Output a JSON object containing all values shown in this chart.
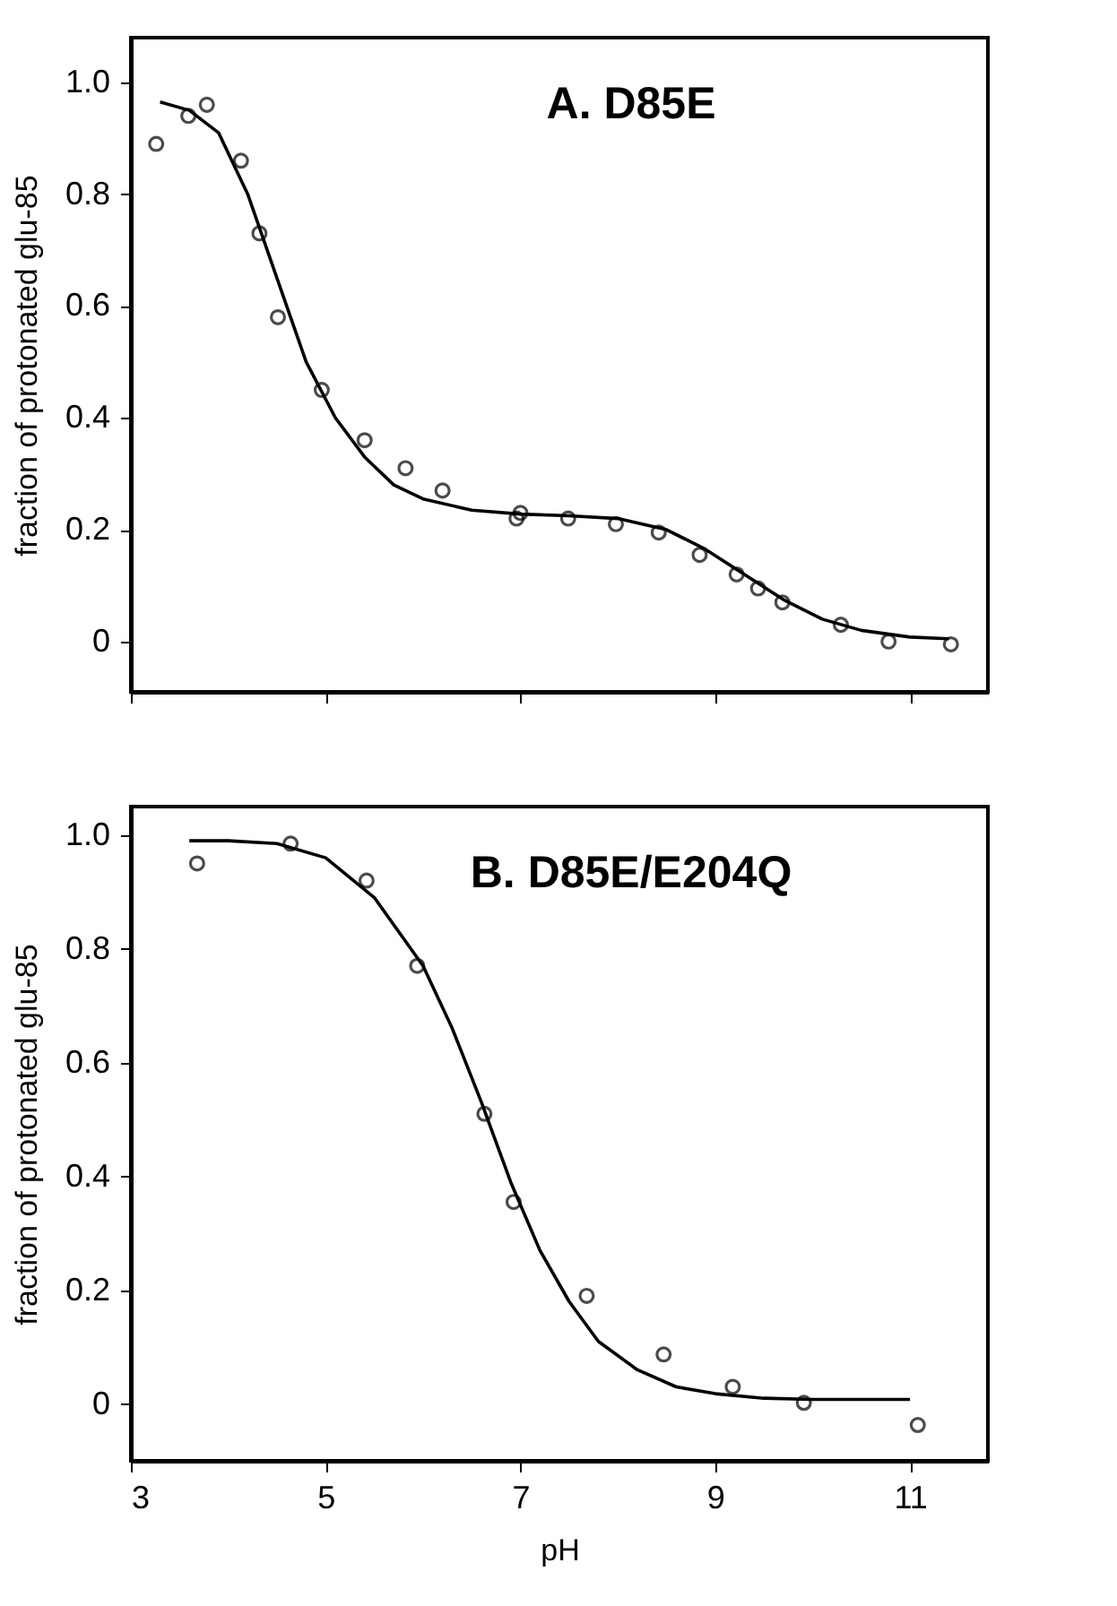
{
  "chart_data": [
    {
      "type": "scatter",
      "title": "A. D85E",
      "ylabel": "fraction of protonated glu-85",
      "xlim": [
        3,
        11.8
      ],
      "xticks": [
        3,
        5,
        7,
        9,
        11
      ],
      "ylim": [
        -0.09,
        1.08
      ],
      "yticks": [
        0,
        0.2,
        0.4,
        0.6,
        0.8,
        {
          "value": 1,
          "label": "1.0"
        }
      ],
      "tick_labels": "y",
      "grid": false,
      "series": [
        {
          "marker": "circle",
          "color": "#000000",
          "x": [
            3.26,
            3.59,
            3.78,
            4.13,
            4.32,
            4.51,
            4.96,
            5.4,
            5.82,
            6.2,
            6.96,
            7.0,
            7.49,
            7.98,
            8.42,
            8.84,
            9.22,
            9.44,
            9.69,
            10.29,
            10.78,
            11.42
          ],
          "values": [
            0.89,
            0.94,
            0.96,
            0.86,
            0.73,
            0.58,
            0.45,
            0.36,
            0.31,
            0.27,
            0.22,
            0.23,
            0.22,
            0.21,
            0.195,
            0.155,
            0.12,
            0.095,
            0.07,
            0.03,
            0.0,
            -0.005
          ]
        },
        {
          "type": "line",
          "color": "#000000",
          "x": [
            3.3,
            3.6,
            3.9,
            4.2,
            4.5,
            4.8,
            5.1,
            5.4,
            5.7,
            6.0,
            6.5,
            7.0,
            7.5,
            8.0,
            8.5,
            8.9,
            9.3,
            9.7,
            10.1,
            10.5,
            11.0,
            11.4
          ],
          "values": [
            0.965,
            0.95,
            0.91,
            0.8,
            0.65,
            0.5,
            0.4,
            0.33,
            0.28,
            0.255,
            0.235,
            0.228,
            0.225,
            0.22,
            0.2,
            0.165,
            0.12,
            0.075,
            0.04,
            0.02,
            0.008,
            0.005
          ]
        }
      ]
    },
    {
      "type": "scatter",
      "title": "B. D85E/E204Q",
      "xlabel": "pH",
      "ylabel": "fraction of protonated glu-85",
      "xlim": [
        3,
        11.8
      ],
      "xticks": [
        3,
        5,
        7,
        9,
        11
      ],
      "ylim": [
        -0.1,
        1.05
      ],
      "yticks": [
        0,
        0.2,
        0.4,
        0.6,
        0.8,
        {
          "value": 1,
          "label": "1.0"
        }
      ],
      "grid": false,
      "series": [
        {
          "marker": "circle",
          "color": "#000000",
          "x": [
            3.68,
            4.64,
            5.42,
            5.94,
            6.63,
            6.93,
            7.68,
            8.47,
            9.18,
            9.91,
            11.08
          ],
          "values": [
            0.95,
            0.985,
            0.92,
            0.77,
            0.51,
            0.355,
            0.19,
            0.087,
            0.03,
            0.002,
            -0.037
          ]
        },
        {
          "type": "line",
          "color": "#000000",
          "x": [
            3.6,
            4.0,
            4.5,
            5.0,
            5.5,
            6.0,
            6.3,
            6.6,
            6.9,
            7.2,
            7.5,
            7.8,
            8.2,
            8.6,
            9.0,
            9.5,
            10.0,
            11.0
          ],
          "values": [
            0.99,
            0.99,
            0.985,
            0.96,
            0.89,
            0.77,
            0.66,
            0.53,
            0.39,
            0.27,
            0.18,
            0.11,
            0.06,
            0.03,
            0.018,
            0.01,
            0.008,
            0.008
          ]
        }
      ]
    }
  ]
}
